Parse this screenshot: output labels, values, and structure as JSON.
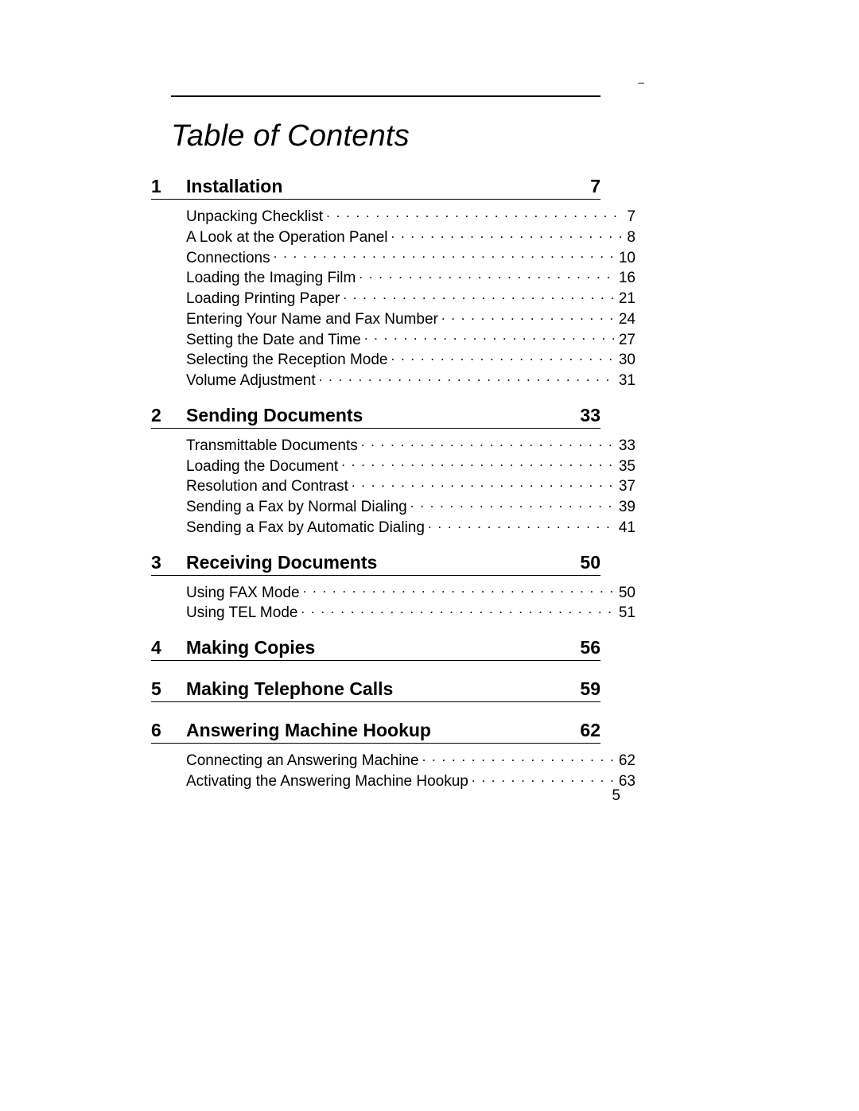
{
  "title": "Table of Contents",
  "page_number": "5",
  "background_color": "#ffffff",
  "text_color": "#000000",
  "chapters": [
    {
      "num": "1",
      "title": "Installation",
      "page": "7",
      "items": [
        {
          "label": "Unpacking Checklist",
          "page": "7"
        },
        {
          "label": "A Look at the Operation Panel",
          "page": "8"
        },
        {
          "label": "Connections",
          "page": "10"
        },
        {
          "label": "Loading the Imaging Film",
          "page": "16"
        },
        {
          "label": "Loading Printing Paper",
          "page": "21"
        },
        {
          "label": "Entering Your Name and Fax Number",
          "page": "24"
        },
        {
          "label": "Setting the Date and Time",
          "page": "27"
        },
        {
          "label": "Selecting the Reception Mode",
          "page": "30"
        },
        {
          "label": "Volume Adjustment",
          "page": "31"
        }
      ]
    },
    {
      "num": "2",
      "title": "Sending Documents",
      "page": "33",
      "items": [
        {
          "label": "Transmittable Documents",
          "page": "33"
        },
        {
          "label": "Loading the Document",
          "page": "35"
        },
        {
          "label": "Resolution and Contrast",
          "page": "37"
        },
        {
          "label": "Sending a Fax by Normal Dialing",
          "page": "39"
        },
        {
          "label": "Sending a Fax by Automatic Dialing",
          "page": "41"
        }
      ]
    },
    {
      "num": "3",
      "title": "Receiving Documents",
      "page": "50",
      "items": [
        {
          "label": "Using FAX Mode",
          "page": "50"
        },
        {
          "label": "Using TEL Mode",
          "page": "51"
        }
      ]
    },
    {
      "num": "4",
      "title": "Making Copies",
      "page": "56",
      "items": []
    },
    {
      "num": "5",
      "title": "Making Telephone Calls",
      "page": "59",
      "items": []
    },
    {
      "num": "6",
      "title": "Answering Machine Hookup",
      "page": "62",
      "items": [
        {
          "label": "Connecting an Answering Machine",
          "page": "62"
        },
        {
          "label": "Activating the Answering Machine Hookup",
          "page": "63"
        }
      ]
    }
  ]
}
